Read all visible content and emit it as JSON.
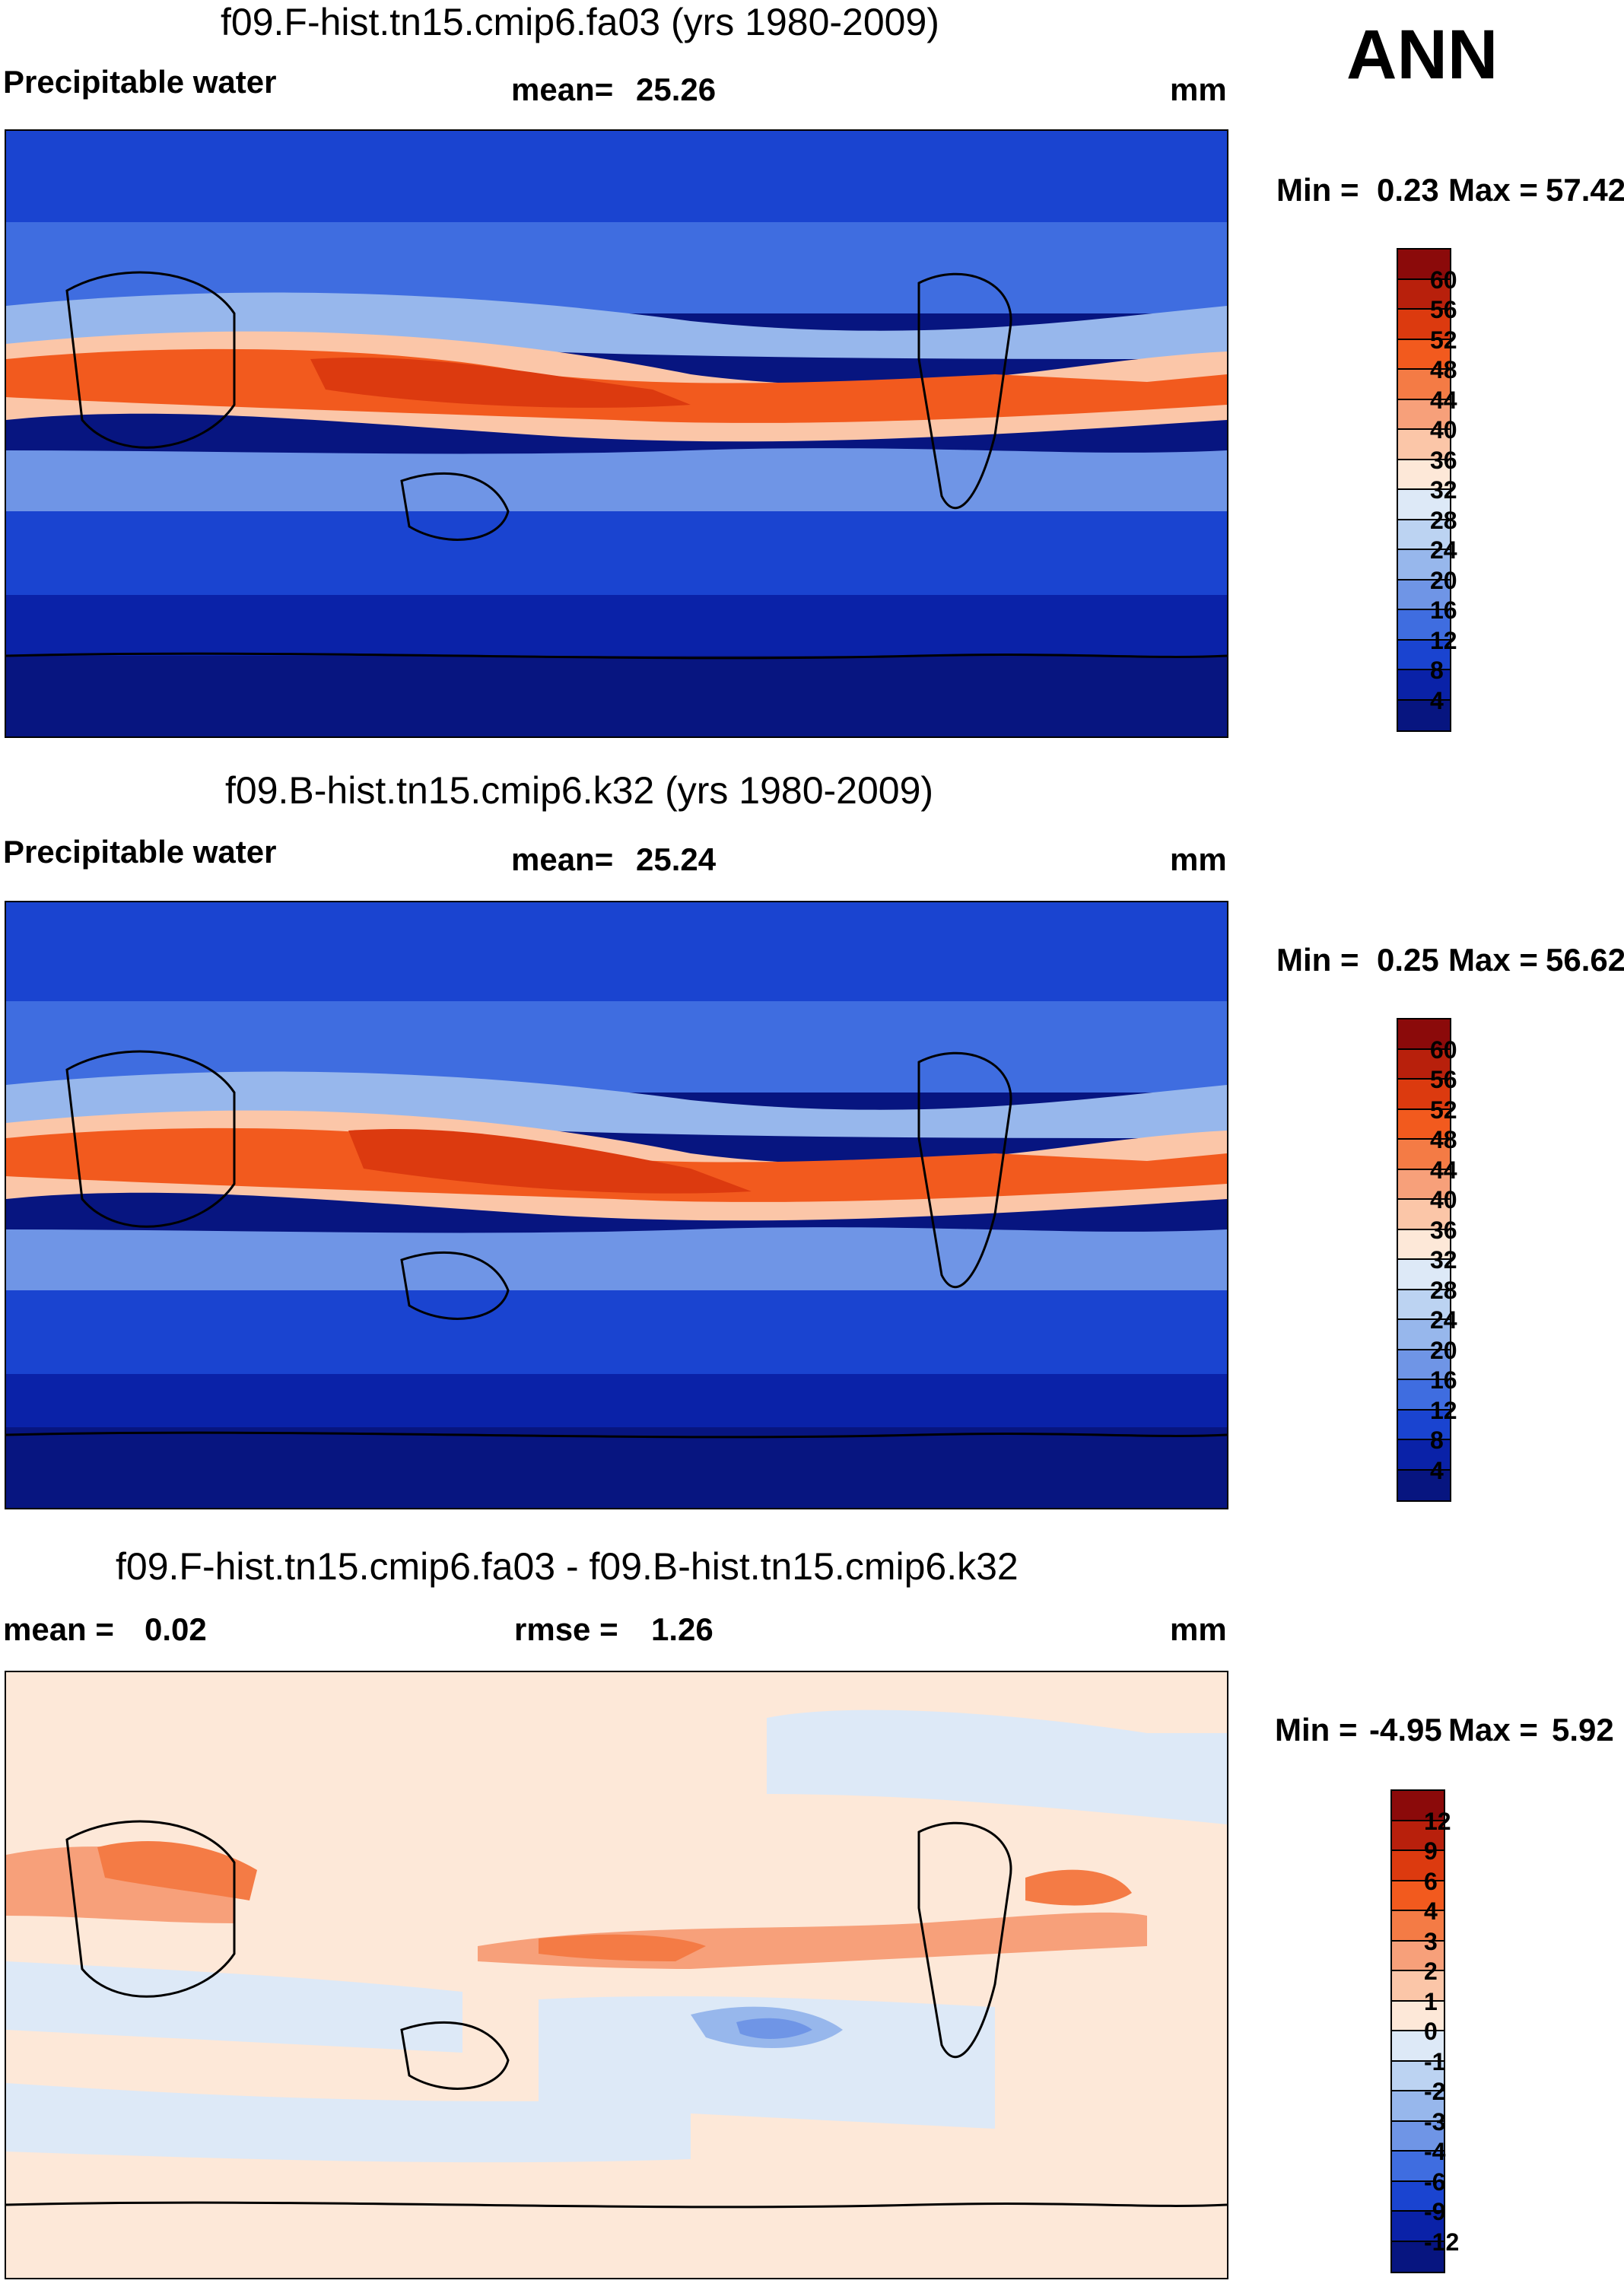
{
  "season": "ANN",
  "chart_data": [
    {
      "type": "heatmap",
      "title": "f09.F-hist.tn15.cmip6.fa03 (yrs 1980-2009)",
      "variable": "Precipitable water",
      "mean_label": "mean=",
      "mean": "25.26",
      "units": "mm",
      "min_label": "Min =",
      "min": "0.23",
      "max_label": "Max =",
      "max": "57.42",
      "levels": [
        "60",
        "56",
        "52",
        "48",
        "44",
        "40",
        "36",
        "32",
        "28",
        "24",
        "20",
        "16",
        "12",
        "8",
        "4"
      ],
      "colors": [
        "#8b0a0a",
        "#b8200c",
        "#dc3a0f",
        "#f25a1e",
        "#f47b45",
        "#f7a07a",
        "#fbc6a8",
        "#fde8d8",
        "#dde9f7",
        "#bcd3f2",
        "#97b7ec",
        "#6f95e6",
        "#3f6de0",
        "#1a44d0",
        "#0a22a8",
        "#071580"
      ],
      "grid": "off"
    },
    {
      "type": "heatmap",
      "title": "f09.B-hist.tn15.cmip6.k32 (yrs 1980-2009)",
      "variable": "Precipitable water",
      "mean_label": "mean=",
      "mean": "25.24",
      "units": "mm",
      "min_label": "Min =",
      "min": "0.25",
      "max_label": "Max =",
      "max": "56.62",
      "levels": [
        "60",
        "56",
        "52",
        "48",
        "44",
        "40",
        "36",
        "32",
        "28",
        "24",
        "20",
        "16",
        "12",
        "8",
        "4"
      ],
      "colors": [
        "#8b0a0a",
        "#b8200c",
        "#dc3a0f",
        "#f25a1e",
        "#f47b45",
        "#f7a07a",
        "#fbc6a8",
        "#fde8d8",
        "#dde9f7",
        "#bcd3f2",
        "#97b7ec",
        "#6f95e6",
        "#3f6de0",
        "#1a44d0",
        "#0a22a8",
        "#071580"
      ],
      "grid": "off"
    },
    {
      "type": "heatmap",
      "title": "f09.F-hist.tn15.cmip6.fa03 - f09.B-hist.tn15.cmip6.k32",
      "mean_label": "mean =",
      "mean": "0.02",
      "rmse_label": "rmse =",
      "rmse": "1.26",
      "units": "mm",
      "min_label": "Min =",
      "min": "-4.95",
      "max_label": "Max =",
      "max": "5.92",
      "levels": [
        "12",
        "9",
        "6",
        "4",
        "3",
        "2",
        "1",
        "0",
        "-1",
        "-2",
        "-3",
        "-4",
        "-6",
        "-9",
        "-12"
      ],
      "colors": [
        "#8b0a0a",
        "#b8200c",
        "#dc3a0f",
        "#f25a1e",
        "#f47b45",
        "#f7a07a",
        "#fbc6a8",
        "#fde8d8",
        "#dde9f7",
        "#bcd3f2",
        "#97b7ec",
        "#6f95e6",
        "#3f6de0",
        "#1a44d0",
        "#0a22a8",
        "#071580"
      ],
      "grid": "off"
    }
  ]
}
